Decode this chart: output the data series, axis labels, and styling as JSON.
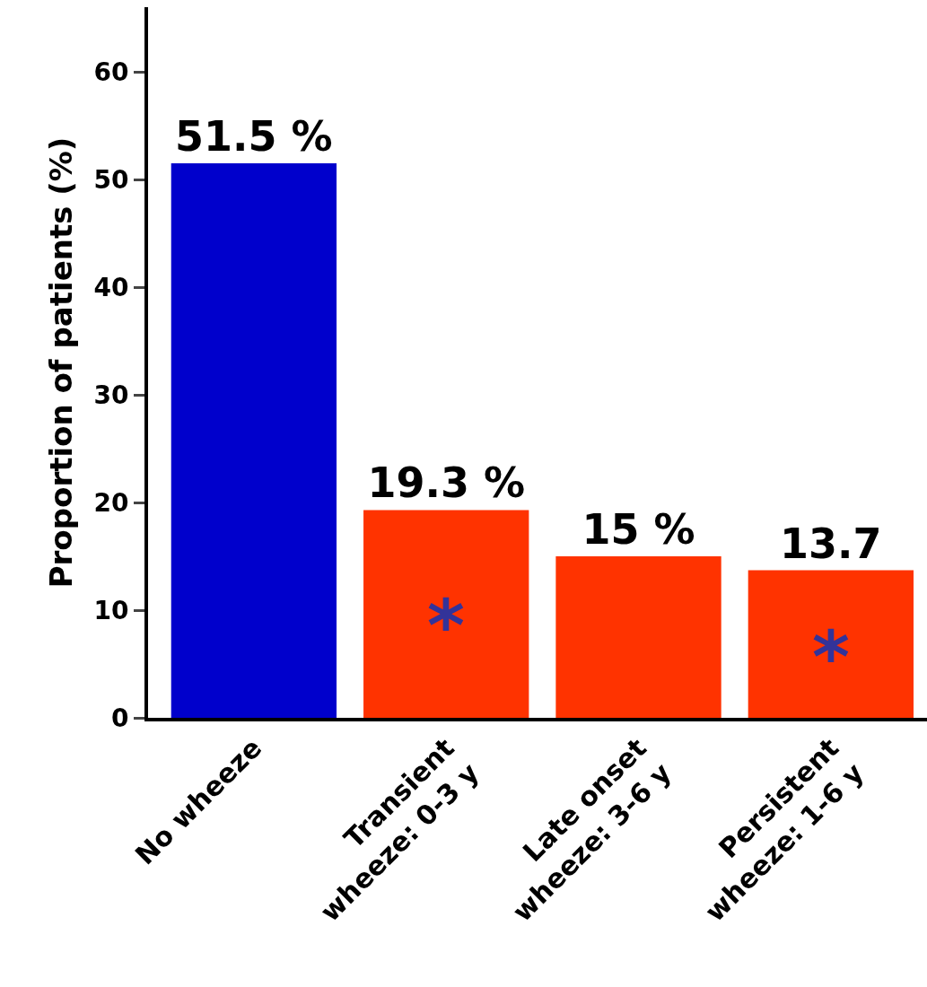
{
  "chart_data": {
    "type": "bar",
    "ylabel": "Proportion of patients (%)",
    "categories": [
      "No wheeze",
      "Transient\nwheeze: 0-3 y",
      "Late onset\nwheeze: 3-6 y",
      "Persistent\nwheeze: 1-6 y"
    ],
    "values": [
      51.5,
      19.3,
      15,
      13.7
    ],
    "colors": [
      "#0000cc",
      "#ff3300",
      "#ff3300",
      "#ff3300"
    ],
    "value_labels": [
      "51.5 %",
      "19.3 %",
      "15 %",
      "13.7"
    ],
    "ylim": [
      0,
      66
    ],
    "yticks": [
      0,
      10,
      20,
      30,
      40,
      50,
      60
    ],
    "legend": false,
    "annotations": [
      "*",
      "*"
    ]
  }
}
